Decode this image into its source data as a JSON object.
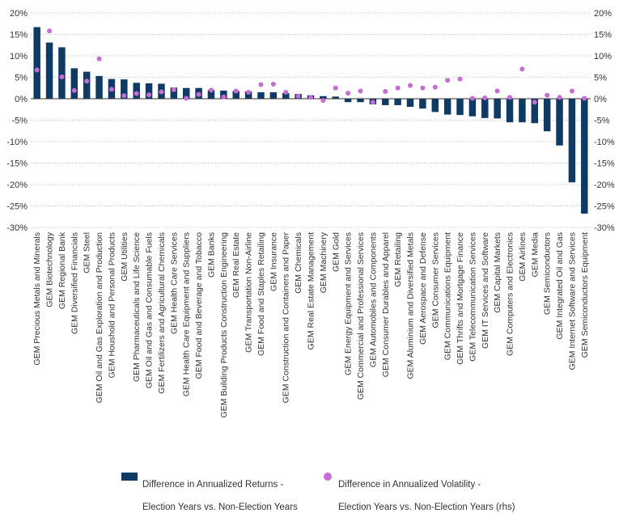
{
  "chart_data": {
    "type": "bar",
    "colors": {
      "bar": "#0d3b66",
      "dot": "#c76bd6",
      "grid": "#b0b0b0",
      "zero": "#333333"
    },
    "left_axis": {
      "ylim": [
        -30,
        20
      ],
      "ticks": [
        "20%",
        "15%",
        "10%",
        "5%",
        "0%",
        "-5%",
        "-10%",
        "-15%",
        "-20%",
        "-25%",
        "-30%"
      ]
    },
    "right_axis": {
      "ylim": [
        -30,
        20
      ],
      "ticks": [
        "20%",
        "15%",
        "10%",
        "5%",
        "0%",
        "-5%",
        "-10%",
        "-15%",
        "-20%",
        "-25%",
        "-30%"
      ]
    },
    "grid": "horizontal-dashed",
    "legend_position": "bottom",
    "categories": [
      "GEM Precious Metals and Minerals",
      "GEM Biotechnology",
      "GEM Regional Bank",
      "GEM Diversified Financials",
      "GEM Steel",
      "GEM Oil and Gas Exploration and Production",
      "GEM Houshold and Personal Products",
      "GEM Utilities",
      "GEM Pharmaceuticals and Life Science",
      "GEM Oil and Gas and Consumable Fuels",
      "GEM Fertilizers and Agricultural Chemicals",
      "GEM Health Care Services",
      "GEM Health Care Equipment and Suppliers",
      "GEM Food and Beverage and Tobacco",
      "GEM Banks",
      "GEM Building Products Construction Engineering",
      "GEM Real Estate",
      "GEM Transportation Non-Airline",
      "GEM Food and Staples Retailing",
      "GEM Insurance",
      "GEM Construction and Containers and Paper",
      "GEM Chemicals",
      "GEM Real Estate Management",
      "GEM Machinery",
      "GEM Gold",
      "GEM Energy Equipment and Services",
      "GEM Commercial and Professional Services",
      "GEM Automobiles and Components",
      "GEM Consumer Durables and Apparel",
      "GEM Retailing",
      "GEM Aluminium and Diversified Metals",
      "GEM Aerospace and Defense",
      "GEM Consumer Services",
      "GEM Communications Equipment",
      "GEM Thrifts and Mortgage Finance",
      "GEM Telecommunication Services",
      "GEM IT Services and Software",
      "GEM Capital Markets",
      "GEM Computers and Electronics",
      "GEM Airlines",
      "GEM Media",
      "GEM Semiconductors",
      "GEM Integrated Oil and Gas",
      "GEM Internet Software and Services",
      "GEM Semiconductors Equipment"
    ],
    "series": [
      {
        "name": "Difference in Annualized Returns - Election Years vs. Non-Election Years",
        "legend_lines": [
          "Difference in Annualized Returns -",
          "Election Years vs. Non-Election Years"
        ],
        "axis": "left",
        "type": "bar",
        "values": [
          16.7,
          13.1,
          12.0,
          7.1,
          6.3,
          5.3,
          4.6,
          4.5,
          3.7,
          3.6,
          3.5,
          2.6,
          2.5,
          2.5,
          2.0,
          1.9,
          1.8,
          1.7,
          1.5,
          1.5,
          1.3,
          1.1,
          0.8,
          0.6,
          0.5,
          -0.8,
          -0.8,
          -1.3,
          -1.5,
          -1.5,
          -1.9,
          -2.3,
          -3.1,
          -3.7,
          -3.8,
          -4.1,
          -4.5,
          -4.6,
          -5.5,
          -5.5,
          -5.7,
          -7.6,
          -10.9,
          -19.5,
          -26.8
        ]
      },
      {
        "name": "Difference in Annualized Volatility - Election Years vs. Non-Election Years (rhs)",
        "legend_lines": [
          "Difference in Annualized Volatility -",
          "Election Years vs. Non-Election Years (rhs)"
        ],
        "axis": "right",
        "type": "scatter",
        "values": [
          6.7,
          15.8,
          5.1,
          1.9,
          4.1,
          9.3,
          2.2,
          0.7,
          1.2,
          0.9,
          1.6,
          2.1,
          0.1,
          1.0,
          2.0,
          0.4,
          1.8,
          1.5,
          3.3,
          3.4,
          1.5,
          0.6,
          0.3,
          -0.4,
          2.5,
          1.3,
          1.8,
          -0.8,
          1.7,
          2.5,
          3.1,
          2.5,
          2.7,
          4.3,
          4.6,
          0.1,
          0.2,
          1.8,
          0.3,
          6.9,
          -0.8,
          0.8,
          0.3,
          1.8,
          0.1
        ]
      }
    ]
  }
}
